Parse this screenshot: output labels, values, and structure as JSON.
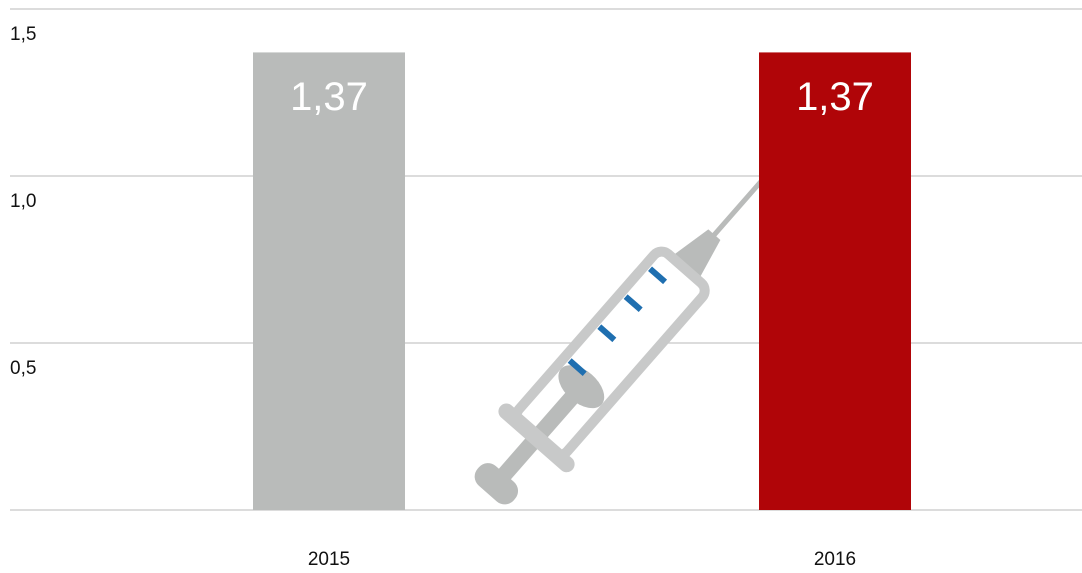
{
  "chart_data": {
    "type": "bar",
    "categories": [
      "2015",
      "2016"
    ],
    "values": [
      1.37,
      1.37
    ],
    "value_labels": [
      "1,37",
      "1,37"
    ],
    "colors": [
      "#b9bbba",
      "#b00508"
    ],
    "ylim": [
      0,
      1.5
    ],
    "yticks": [
      {
        "value": 0.5,
        "label": "0,5"
      },
      {
        "value": 1.0,
        "label": "1,0"
      },
      {
        "value": 1.5,
        "label": "1,5"
      }
    ],
    "grid": true
  }
}
